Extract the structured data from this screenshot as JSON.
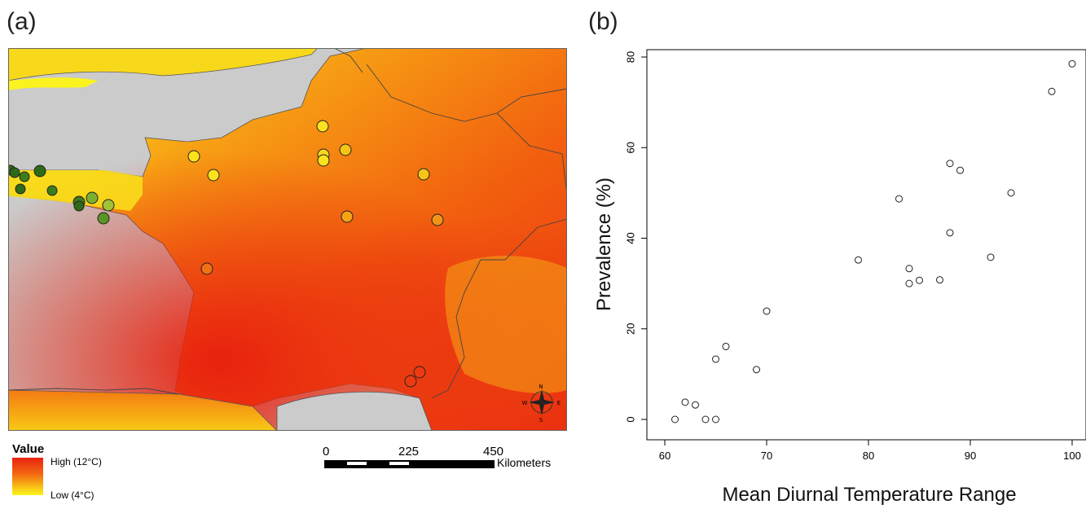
{
  "panel_a": {
    "label": "(a)",
    "legend": {
      "title": "Value",
      "high": "High  (12°C)",
      "low": "Low   (4°C)"
    },
    "scale_bar": {
      "ticks": [
        "0",
        "225",
        "450"
      ],
      "unit": "Kilometers"
    },
    "compass": {
      "n": "N",
      "s": "S",
      "e": "E",
      "w": "W"
    },
    "colors": {
      "sea": "#cbcbcb",
      "warm": "#e8220f",
      "mid": "#f36b12",
      "cool": "#fbf51f",
      "site_green": "#2e7d1a"
    }
  },
  "panel_b": {
    "label": "(b)"
  },
  "chart_data": {
    "type": "scatter",
    "title": "",
    "xlabel": "Mean Diurnal Temperature Range",
    "ylabel": "Prevalence (%)",
    "xlim": [
      60,
      100
    ],
    "ylim": [
      0,
      80
    ],
    "x_ticks": [
      "60",
      "70",
      "80",
      "90",
      "100"
    ],
    "y_ticks": [
      "0",
      "20",
      "40",
      "60",
      "80"
    ],
    "grid": false,
    "series": [
      {
        "x": [
          61,
          62,
          63,
          64,
          65,
          65,
          66,
          69,
          70,
          79,
          83,
          84,
          84,
          85,
          87,
          88,
          88,
          89,
          92,
          94,
          98,
          100
        ],
        "y": [
          0,
          3.8,
          3.2,
          0,
          0,
          13.3,
          16.1,
          11,
          23.9,
          35.2,
          48.7,
          33.3,
          30,
          30.7,
          30.8,
          41.2,
          56.5,
          55,
          35.8,
          50,
          72.4,
          78.5
        ]
      }
    ]
  }
}
